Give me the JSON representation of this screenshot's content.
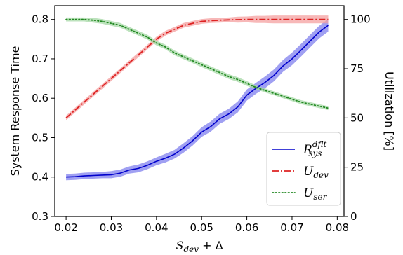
{
  "chart_data": {
    "type": "line",
    "xlabel": "S_dev + Δ",
    "xlabel_parts": {
      "main": "S",
      "sub": "dev",
      "rest": " + Δ"
    },
    "ylabel_left": "System Response Time",
    "ylabel_right": "Utilization [%]",
    "xlim": [
      0.0175,
      0.0815
    ],
    "ylim_left": [
      0.3,
      0.835
    ],
    "ylim_right": [
      0,
      107
    ],
    "x_ticks": [
      0.02,
      0.03,
      0.04,
      0.05,
      0.06,
      0.07,
      0.08
    ],
    "x_tick_labels": [
      "0.02",
      "0.03",
      "0.04",
      "0.05",
      "0.06",
      "0.07",
      "0.08"
    ],
    "y_left_ticks": [
      0.3,
      0.4,
      0.5,
      0.6,
      0.7,
      0.8
    ],
    "y_left_tick_labels": [
      "0.3",
      "0.4",
      "0.5",
      "0.6",
      "0.7",
      "0.8"
    ],
    "y_right_ticks": [
      0,
      25,
      50,
      75,
      100
    ],
    "y_right_tick_labels": [
      "0",
      "25",
      "50",
      "75",
      "100"
    ],
    "legend_placement": "lower-right",
    "grid": false,
    "x": [
      0.02,
      0.022,
      0.024,
      0.026,
      0.028,
      0.03,
      0.032,
      0.034,
      0.036,
      0.038,
      0.04,
      0.042,
      0.044,
      0.046,
      0.048,
      0.05,
      0.052,
      0.054,
      0.056,
      0.058,
      0.06,
      0.062,
      0.064,
      0.066,
      0.068,
      0.07,
      0.072,
      0.074,
      0.076,
      0.078
    ],
    "series": [
      {
        "name": "R_sys^dflt",
        "label_main": "R",
        "label_sub": "sys",
        "label_sup": "dflt",
        "axis": "left",
        "color": "#0000cc",
        "band_color": "#8080ee",
        "style": "solid",
        "values": [
          0.4,
          0.401,
          0.403,
          0.404,
          0.405,
          0.406,
          0.41,
          0.418,
          0.422,
          0.43,
          0.44,
          0.448,
          0.458,
          0.474,
          0.492,
          0.514,
          0.528,
          0.548,
          0.56,
          0.578,
          0.608,
          0.625,
          0.64,
          0.658,
          0.682,
          0.7,
          0.722,
          0.745,
          0.768,
          0.785
        ],
        "band": [
          0.008,
          0.008,
          0.008,
          0.008,
          0.008,
          0.009,
          0.009,
          0.009,
          0.01,
          0.01,
          0.01,
          0.011,
          0.011,
          0.012,
          0.012,
          0.012,
          0.013,
          0.013,
          0.013,
          0.014,
          0.014,
          0.014,
          0.015,
          0.015,
          0.015,
          0.016,
          0.016,
          0.016,
          0.016,
          0.016
        ]
      },
      {
        "name": "U_dev",
        "label_main": "U",
        "label_sub": "dev",
        "label_sup": "",
        "axis": "right",
        "color": "#dd2222",
        "band_color": "#f4a0a0",
        "style": "dashdot",
        "values": [
          50,
          54,
          58,
          62,
          66,
          70,
          74,
          78,
          82,
          86,
          90,
          93,
          95,
          97,
          98,
          99,
          99.4,
          99.6,
          99.8,
          99.9,
          100,
          100,
          100,
          100,
          100,
          100,
          100,
          100,
          100,
          100
        ],
        "band": [
          1.2,
          1.2,
          1.2,
          1.2,
          1.2,
          1.2,
          1.2,
          1.2,
          1.2,
          1.2,
          1.2,
          1.2,
          1.2,
          1.2,
          1.2,
          1.2,
          1.2,
          1.2,
          1.2,
          1.5,
          1.5,
          1.8,
          1.8,
          2.0,
          2.0,
          2.0,
          2.0,
          2.0,
          2.0,
          2.0
        ]
      },
      {
        "name": "U_ser",
        "label_main": "U",
        "label_sub": "ser",
        "label_sup": "",
        "axis": "right",
        "color": "#228822",
        "band_color": "#a6d8a6",
        "style": "dotted",
        "values": [
          100,
          100,
          100,
          99.6,
          99,
          98,
          97,
          95,
          93,
          91,
          88,
          86,
          83,
          81,
          79,
          77,
          75,
          73,
          71,
          69.5,
          67.5,
          65.5,
          64,
          62.5,
          61,
          59.5,
          58,
          57,
          56,
          55
        ],
        "band": [
          1.0,
          1.0,
          1.0,
          1.2,
          1.2,
          1.2,
          1.2,
          1.2,
          1.2,
          1.2,
          1.2,
          1.2,
          1.2,
          1.2,
          1.2,
          1.2,
          1.2,
          1.2,
          1.2,
          1.2,
          1.2,
          1.0,
          1.0,
          1.0,
          1.0,
          1.0,
          1.0,
          1.0,
          1.0,
          1.0
        ]
      }
    ]
  }
}
